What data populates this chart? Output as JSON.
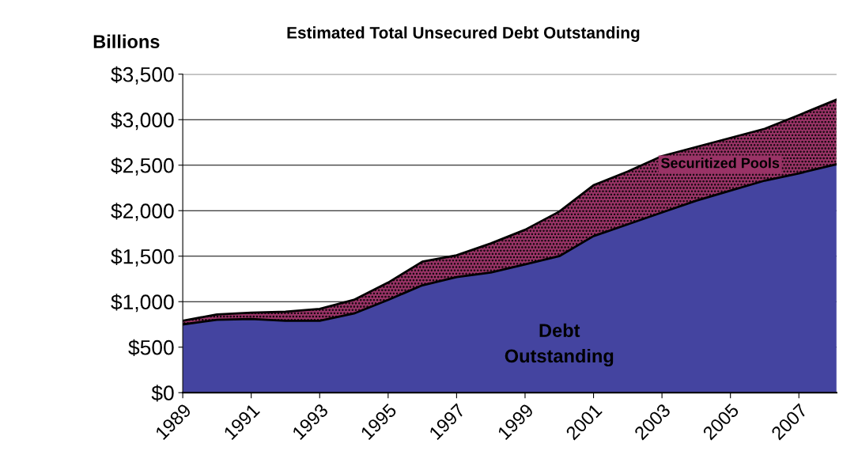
{
  "chart_data": {
    "type": "area",
    "title": "Estimated Total Unsecured Debt Outstanding",
    "ylabel": "Billions",
    "stacked": true,
    "x": [
      1989,
      1990,
      1991,
      1992,
      1993,
      1994,
      1995,
      1996,
      1997,
      1998,
      1999,
      2000,
      2001,
      2002,
      2003,
      2004,
      2005,
      2006,
      2007,
      2008.1
    ],
    "series": [
      {
        "name": "Debt Outstanding",
        "color": "#4444a0",
        "values": [
          750,
          800,
          810,
          790,
          790,
          870,
          1020,
          1180,
          1270,
          1320,
          1410,
          1500,
          1720,
          1850,
          1980,
          2110,
          2220,
          2330,
          2410,
          2510
        ]
      },
      {
        "name": "Securitized Pools",
        "color": "#993366",
        "values": [
          40,
          60,
          70,
          100,
          130,
          150,
          190,
          260,
          240,
          320,
          380,
          490,
          560,
          580,
          620,
          590,
          580,
          570,
          640,
          710
        ]
      }
    ],
    "xlim": [
      1989,
      2008.1
    ],
    "xticks": [
      1989,
      1991,
      1993,
      1995,
      1997,
      1999,
      2001,
      2003,
      2005,
      2007
    ],
    "ylim": [
      0,
      3500
    ],
    "yticks": [
      {
        "value": 0,
        "label": "$0"
      },
      {
        "value": 500,
        "label": "$500"
      },
      {
        "value": 1000,
        "label": "$1,000"
      },
      {
        "value": 1500,
        "label": "$1,500"
      },
      {
        "value": 2000,
        "label": "$2,000"
      },
      {
        "value": 2500,
        "label": "$2,500"
      },
      {
        "value": 3000,
        "label": "$3,000"
      },
      {
        "value": 3500,
        "label": "$3,500"
      }
    ],
    "grid": "y",
    "legend": false
  }
}
